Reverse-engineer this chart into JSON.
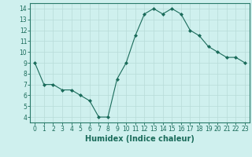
{
  "x": [
    0,
    1,
    2,
    3,
    4,
    5,
    6,
    7,
    8,
    9,
    10,
    11,
    12,
    13,
    14,
    15,
    16,
    17,
    18,
    19,
    20,
    21,
    22,
    23
  ],
  "y": [
    9,
    7,
    7,
    6.5,
    6.5,
    6,
    5.5,
    4,
    4,
    7.5,
    9,
    11.5,
    13.5,
    14,
    13.5,
    14,
    13.5,
    12,
    11.5,
    10.5,
    10,
    9.5,
    9.5,
    9
  ],
  "line_color": "#1a6b5a",
  "marker": "D",
  "marker_size": 2.0,
  "bg_color": "#cff0ee",
  "grid_color": "#b8dbd8",
  "axis_color": "#2a7a6a",
  "xlabel": "Humidex (Indice chaleur)",
  "xlim": [
    -0.5,
    23.5
  ],
  "ylim": [
    3.5,
    14.5
  ],
  "yticks": [
    4,
    5,
    6,
    7,
    8,
    9,
    10,
    11,
    12,
    13,
    14
  ],
  "xticks": [
    0,
    1,
    2,
    3,
    4,
    5,
    6,
    7,
    8,
    9,
    10,
    11,
    12,
    13,
    14,
    15,
    16,
    17,
    18,
    19,
    20,
    21,
    22,
    23
  ],
  "tick_label_fontsize": 5.5,
  "xlabel_fontsize": 7.0,
  "label_color": "#1a6b5a"
}
